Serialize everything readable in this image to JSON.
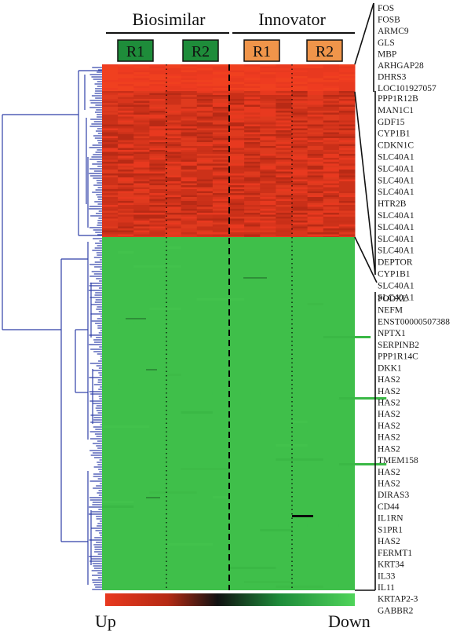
{
  "chart_data": {
    "type": "heatmap",
    "groups": [
      {
        "name": "Biosimilar",
        "color": "#1e8c3a",
        "replicates": [
          "R1",
          "R2"
        ]
      },
      {
        "name": "Innovator",
        "color": "#f0954a",
        "replicates": [
          "R1",
          "R2"
        ]
      }
    ],
    "colors": {
      "up": "#e8391f",
      "mid": "#111111",
      "down": "#3fbf4a",
      "cluster_line": "#2f3fa8"
    },
    "clusters": [
      {
        "name": "up",
        "genes": [
          "FOS",
          "FOSB",
          "ARMC9",
          "GLS",
          "MBP",
          "ARHGAP28",
          "DHRS3",
          "LOC101927057"
        ]
      },
      {
        "name": "up",
        "genes": [
          "PPP1R12B",
          "MAN1C1",
          "GDF15",
          "CYP1B1",
          "CDKN1C",
          "SLC40A1",
          "SLC40A1",
          "SLC40A1",
          "SLC40A1",
          "HTR2B",
          "SLC40A1",
          "SLC40A1",
          "SLC40A1",
          "SLC40A1",
          "DEPTOR",
          "CYP1B1",
          "SLC40A1",
          "SLC40A1"
        ]
      },
      {
        "name": "down",
        "genes": [
          "PODXL",
          "NEFM",
          "ENST00000507388",
          "NPTX1",
          "SERPINB2",
          "PPP1R14C",
          "DKK1",
          "HAS2",
          "HAS2",
          "HAS2",
          "HAS2",
          "HAS2",
          "HAS2",
          "HAS2",
          "TMEM158",
          "HAS2",
          "HAS2",
          "DIRAS3",
          "CD44",
          "IL1RN",
          "S1PR1",
          "HAS2",
          "FERMT1",
          "KRT34",
          "IL33",
          "IL11",
          "KRTAP2-3",
          "GABBR2"
        ]
      }
    ],
    "scale": {
      "low_label": "Up",
      "high_label": "Down"
    }
  }
}
